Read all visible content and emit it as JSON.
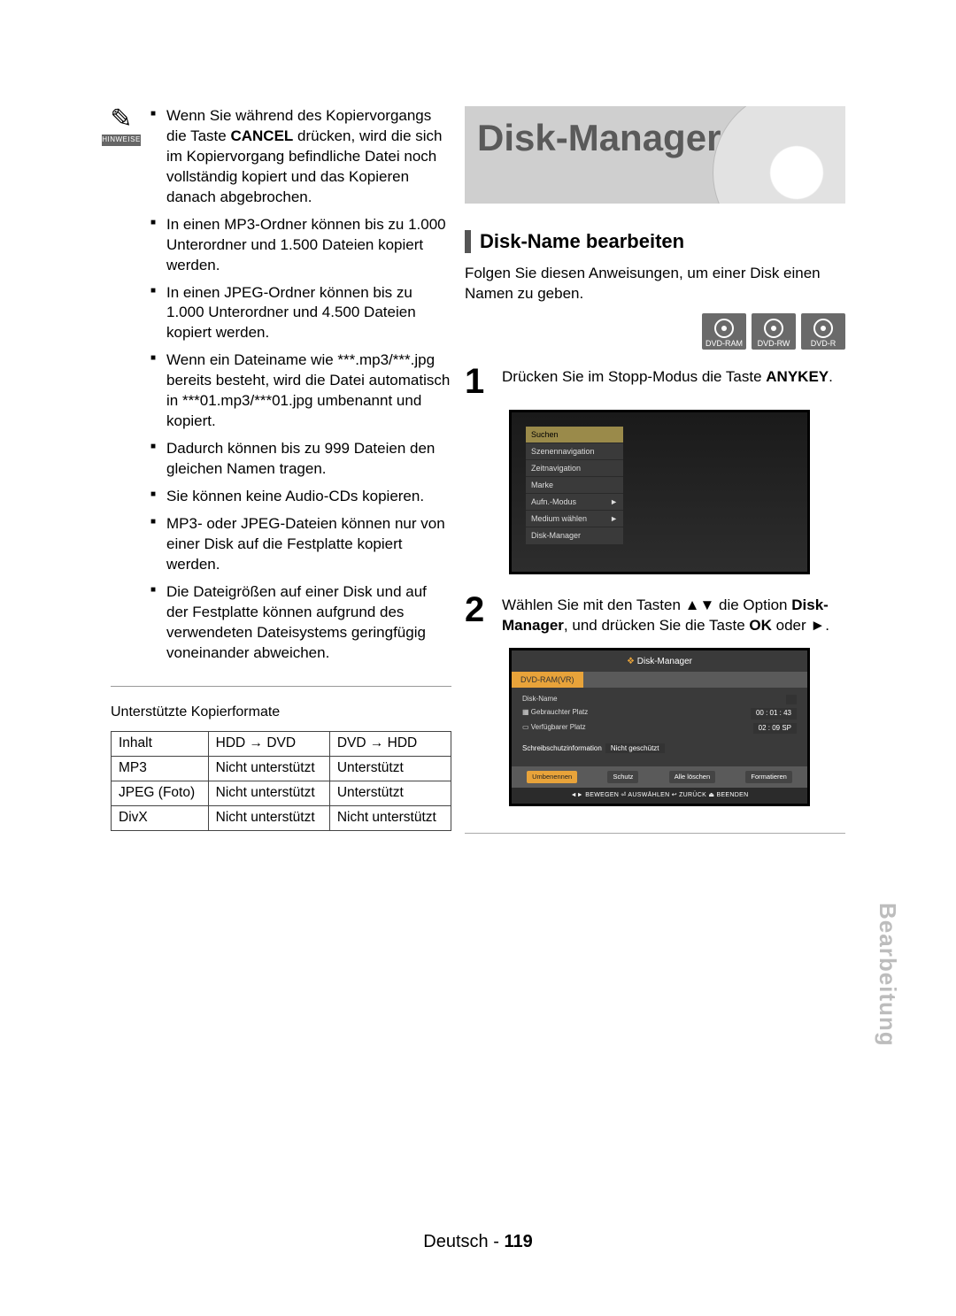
{
  "hint": {
    "label": "HINWEISE",
    "items": [
      "Wenn Sie während des Kopiervorgangs die Taste <b>CANCEL</b> drücken, wird die sich im Kopiervorgang befindliche Datei noch vollständig kopiert und das Kopieren danach abgebrochen.",
      "In einen MP3-Ordner können bis zu 1.000 Unterordner und 1.500 Dateien kopiert werden.",
      "In einen JPEG-Ordner können bis zu 1.000 Unterordner und 4.500 Dateien kopiert werden.",
      "Wenn ein Dateiname wie ***.mp3/***.jpg bereits besteht, wird die Datei automatisch in ***01.mp3/***01.jpg umbenannt und kopiert.",
      "Dadurch können bis zu 999 Dateien den gleichen Namen tragen.",
      "Sie können keine Audio-CDs kopieren.",
      "MP3- oder JPEG-Dateien können nur von einer Disk auf die Festplatte kopiert werden.",
      "Die Dateigrößen auf einer Disk und auf der Festplatte können aufgrund des verwendeten Dateisystems geringfügig voneinander abweichen."
    ]
  },
  "table": {
    "caption": "Unterstützte Kopierformate",
    "columns": [
      "Inhalt",
      "HDD → DVD",
      "DVD → HDD"
    ],
    "rows": [
      [
        "MP3",
        "Nicht unterstützt",
        "Unterstützt"
      ],
      [
        "JPEG (Foto)",
        "Nicht unterstützt",
        "Unterstützt"
      ],
      [
        "DivX",
        "Nicht unterstützt",
        "Nicht unterstützt"
      ]
    ]
  },
  "banner": {
    "title": "Disk-Manager"
  },
  "section": {
    "title": "Disk-Name bearbeiten",
    "intro": "Folgen Sie diesen Anweisungen, um einer Disk einen Namen zu geben."
  },
  "disc_badges": [
    "DVD-RAM",
    "DVD-RW",
    "DVD-R"
  ],
  "steps": {
    "s1": {
      "num": "1",
      "text": "Drücken Sie im Stopp-Modus die Taste <b>ANYKEY</b>."
    },
    "s2": {
      "num": "2",
      "text": "Wählen Sie mit den Tasten ▲▼ die Option <b>Disk-Manager</b>, und drücken Sie die Taste <b>OK</b> oder ►."
    }
  },
  "screen1": {
    "menu": [
      {
        "label": "Suchen",
        "hl": true,
        "arrow": false
      },
      {
        "label": "Szenennavigation",
        "hl": false,
        "arrow": false
      },
      {
        "label": "Zeitnavigation",
        "hl": false,
        "arrow": false
      },
      {
        "label": "Marke",
        "hl": false,
        "arrow": false
      },
      {
        "label": "Aufn.-Modus",
        "hl": false,
        "arrow": true
      },
      {
        "label": "Medium wählen",
        "hl": false,
        "arrow": true
      },
      {
        "label": "Disk-Manager",
        "hl": false,
        "arrow": false
      }
    ]
  },
  "screen2": {
    "title": "Disk-Manager",
    "tab": "DVD-RAM(VR)",
    "rows": [
      {
        "label": "Disk-Name",
        "value": ""
      },
      {
        "label": "Gebrauchter Platz",
        "value": "00 : 01 : 43"
      },
      {
        "label": "Verfügbarer Platz",
        "value": "02 : 09 SP"
      }
    ],
    "protect": {
      "label": "Schreibschutzinformation",
      "value": "Nicht geschützt"
    },
    "buttons": [
      "Umbenennen",
      "Schutz",
      "Alle löschen",
      "Formatieren"
    ],
    "footer": "◄► BEWEGEN   ⏎ AUSWÄHLEN   ↩ ZURÜCK   ⏏ BEENDEN"
  },
  "side_tab": "Bearbeitung",
  "footer": {
    "lang": "Deutsch",
    "sep": " - ",
    "page": "119"
  },
  "colors": {
    "banner_bg": "#cfcfcf",
    "banner_text": "#5a5a5a",
    "accent": "#e8a33a",
    "side_tab": "#bdbdbd"
  }
}
